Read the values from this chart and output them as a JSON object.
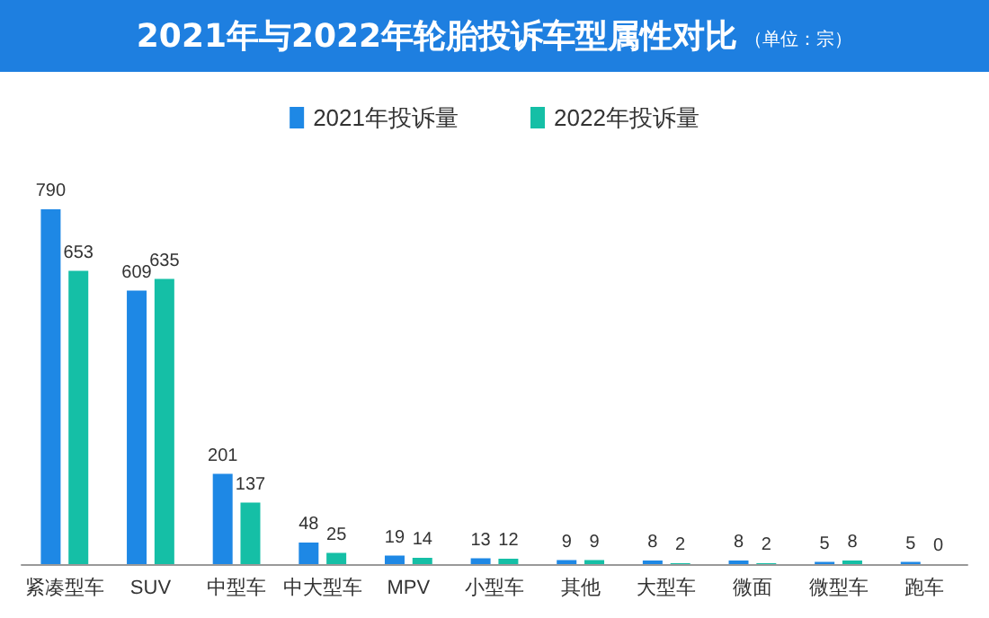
{
  "chart_data": {
    "type": "bar",
    "title": "2021年与2022年轮胎投诉车型属性对比",
    "subtitle": "（单位：宗）",
    "categories": [
      "紧凑型车",
      "SUV",
      "中型车",
      "中大型车",
      "MPV",
      "小型车",
      "其他",
      "大型车",
      "微面",
      "微型车",
      "跑车"
    ],
    "series": [
      {
        "name": "2021年投诉量",
        "color": "#1e88e5",
        "values": [
          790,
          609,
          201,
          48,
          19,
          13,
          9,
          8,
          8,
          5,
          5
        ]
      },
      {
        "name": "2022年投诉量",
        "color": "#15bfa6",
        "values": [
          653,
          635,
          137,
          25,
          14,
          12,
          9,
          2,
          2,
          8,
          0
        ]
      }
    ],
    "data_labels": true,
    "legend": "top"
  }
}
